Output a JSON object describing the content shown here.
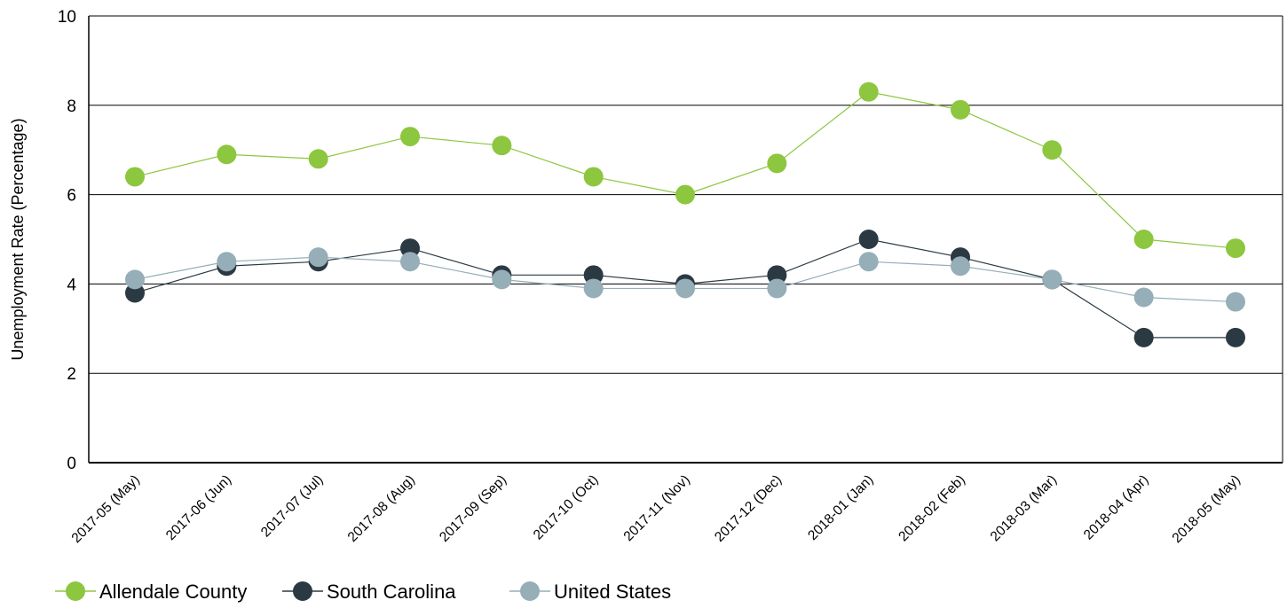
{
  "chart_data": {
    "type": "line",
    "title": "",
    "xlabel": "",
    "ylabel": "Unemployment Rate (Percentage)",
    "ylim": [
      0,
      10
    ],
    "yticks": [
      0,
      2,
      4,
      6,
      8,
      10
    ],
    "grid": true,
    "legend_position": "bottom-left",
    "categories": [
      "2017-05 (May)",
      "2017-06 (Jun)",
      "2017-07 (Jul)",
      "2017-08 (Aug)",
      "2017-09 (Sep)",
      "2017-10 (Oct)",
      "2017-11 (Nov)",
      "2017-12 (Dec)",
      "2018-01 (Jan)",
      "2018-02 (Feb)",
      "2018-03 (Mar)",
      "2018-04 (Apr)",
      "2018-05 (May)"
    ],
    "series": [
      {
        "name": "Allendale County",
        "color": "#8dc63f",
        "values": [
          6.4,
          6.9,
          6.8,
          7.3,
          7.1,
          6.4,
          6.0,
          6.7,
          8.3,
          7.9,
          7.0,
          5.0,
          4.8
        ]
      },
      {
        "name": "South Carolina",
        "color": "#2b3a42",
        "values": [
          3.8,
          4.4,
          4.5,
          4.8,
          4.2,
          4.2,
          4.0,
          4.2,
          5.0,
          4.6,
          4.1,
          2.8,
          2.8
        ]
      },
      {
        "name": "United States",
        "color": "#95aeb8",
        "values": [
          4.1,
          4.5,
          4.6,
          4.5,
          4.1,
          3.9,
          3.9,
          3.9,
          4.5,
          4.4,
          4.1,
          3.7,
          3.6
        ]
      }
    ]
  }
}
